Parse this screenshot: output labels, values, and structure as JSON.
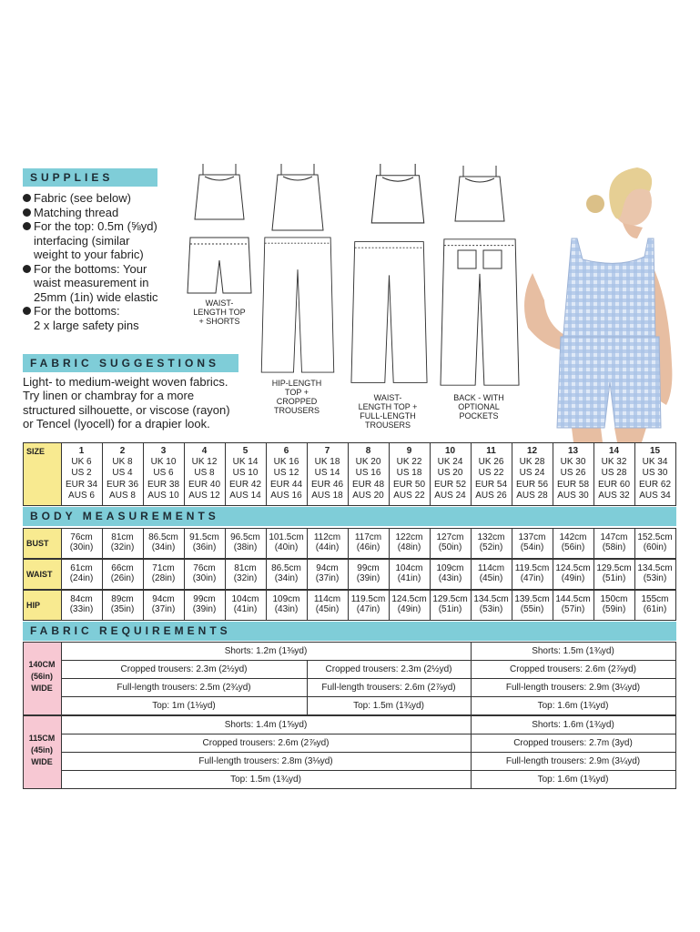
{
  "supplies": {
    "title": "SUPPLIES",
    "items": [
      [
        "Fabric (see below)"
      ],
      [
        "Matching thread"
      ],
      [
        "For the top: 0.5m (⅝yd)",
        "interfacing (similar",
        "weight to your fabric)"
      ],
      [
        "For the bottoms: Your",
        "waist measurement in",
        "25mm (1in) wide elastic"
      ],
      [
        "For the bottoms:",
        "2 x large safety pins"
      ]
    ]
  },
  "illustrations": [
    {
      "label": [
        "WAIST-",
        "LENGTH TOP",
        "+ SHORTS"
      ]
    },
    {
      "label": [
        "HIP-LENGTH",
        "TOP +",
        "CROPPED",
        "TROUSERS"
      ]
    },
    {
      "label": [
        "WAIST-",
        "LENGTH TOP +",
        "FULL-LENGTH",
        "TROUSERS"
      ]
    },
    {
      "label": [
        "BACK - WITH",
        "OPTIONAL",
        "POCKETS"
      ]
    }
  ],
  "fabric_suggestions": {
    "title": "FABRIC SUGGESTIONS",
    "lines": [
      "Light- to medium-weight woven fabrics.",
      "Try linen or chambray for a more",
      "structured silhouette, or viscose (rayon)",
      "or Tencel (lyocell) for a drapier look."
    ]
  },
  "size_table": {
    "header": "SIZE",
    "sizes": [
      {
        "number": "1",
        "lines": [
          "UK 6",
          "US 2",
          "EUR 34",
          "AUS 6"
        ]
      },
      {
        "number": "2",
        "lines": [
          "UK 8",
          "US 4",
          "EUR 36",
          "AUS 8"
        ]
      },
      {
        "number": "3",
        "lines": [
          "UK 10",
          "US 6",
          "EUR 38",
          "AUS 10"
        ]
      },
      {
        "number": "4",
        "lines": [
          "UK 12",
          "US 8",
          "EUR 40",
          "AUS 12"
        ]
      },
      {
        "number": "5",
        "lines": [
          "UK 14",
          "US 10",
          "EUR 42",
          "AUS 14"
        ]
      },
      {
        "number": "6",
        "lines": [
          "UK 16",
          "US 12",
          "EUR 44",
          "AUS 16"
        ]
      },
      {
        "number": "7",
        "lines": [
          "UK 18",
          "US 14",
          "EUR 46",
          "AUS 18"
        ]
      },
      {
        "number": "8",
        "lines": [
          "UK 20",
          "US 16",
          "EUR 48",
          "AUS 20"
        ]
      },
      {
        "number": "9",
        "lines": [
          "UK 22",
          "US 18",
          "EUR 50",
          "AUS 22"
        ]
      },
      {
        "number": "10",
        "lines": [
          "UK 24",
          "US 20",
          "EUR 52",
          "AUS 24"
        ]
      },
      {
        "number": "11",
        "lines": [
          "UK 26",
          "US 22",
          "EUR 54",
          "AUS 26"
        ]
      },
      {
        "number": "12",
        "lines": [
          "UK 28",
          "US 24",
          "EUR 56",
          "AUS 28"
        ]
      },
      {
        "number": "13",
        "lines": [
          "UK 30",
          "US 26",
          "EUR 58",
          "AUS 30"
        ]
      },
      {
        "number": "14",
        "lines": [
          "UK 32",
          "US 28",
          "EUR 60",
          "AUS 32"
        ]
      },
      {
        "number": "15",
        "lines": [
          "UK 34",
          "US 30",
          "EUR 62",
          "AUS 34"
        ]
      }
    ]
  },
  "body_measurements": {
    "title": "BODY MEASUREMENTS",
    "rows": [
      {
        "label": "BUST",
        "cells": [
          [
            "76cm",
            "(30in)"
          ],
          [
            "81cm",
            "(32in)"
          ],
          [
            "86.5cm",
            "(34in)"
          ],
          [
            "91.5cm",
            "(36in)"
          ],
          [
            "96.5cm",
            "(38in)"
          ],
          [
            "101.5cm",
            "(40in)"
          ],
          [
            "112cm",
            "(44in)"
          ],
          [
            "117cm",
            "(46in)"
          ],
          [
            "122cm",
            "(48in)"
          ],
          [
            "127cm",
            "(50in)"
          ],
          [
            "132cm",
            "(52in)"
          ],
          [
            "137cm",
            "(54in)"
          ],
          [
            "142cm",
            "(56in)"
          ],
          [
            "147cm",
            "(58in)"
          ],
          [
            "152.5cm",
            "(60in)"
          ]
        ]
      },
      {
        "label": "WAIST",
        "cells": [
          [
            "61cm",
            "(24in)"
          ],
          [
            "66cm",
            "(26in)"
          ],
          [
            "71cm",
            "(28in)"
          ],
          [
            "76cm",
            "(30in)"
          ],
          [
            "81cm",
            "(32in)"
          ],
          [
            "86.5cm",
            "(34in)"
          ],
          [
            "94cm",
            "(37in)"
          ],
          [
            "99cm",
            "(39in)"
          ],
          [
            "104cm",
            "(41in)"
          ],
          [
            "109cm",
            "(43in)"
          ],
          [
            "114cm",
            "(45in)"
          ],
          [
            "119.5cm",
            "(47in)"
          ],
          [
            "124.5cm",
            "(49in)"
          ],
          [
            "129.5cm",
            "(51in)"
          ],
          [
            "134.5cm",
            "(53in)"
          ]
        ]
      },
      {
        "label": "HIP",
        "cells": [
          [
            "84cm",
            "(33in)"
          ],
          [
            "89cm",
            "(35in)"
          ],
          [
            "94cm",
            "(37in)"
          ],
          [
            "99cm",
            "(39in)"
          ],
          [
            "104cm",
            "(41in)"
          ],
          [
            "109cm",
            "(43in)"
          ],
          [
            "114cm",
            "(45in)"
          ],
          [
            "119.5cm",
            "(47in)"
          ],
          [
            "124.5cm",
            "(49in)"
          ],
          [
            "129.5cm",
            "(51in)"
          ],
          [
            "134.5cm",
            "(53in)"
          ],
          [
            "139.5cm",
            "(55in)"
          ],
          [
            "144.5cm",
            "(57in)"
          ],
          [
            "150cm",
            "(59in)"
          ],
          [
            "155cm",
            "(61in)"
          ]
        ]
      }
    ]
  },
  "fabric_requirements": {
    "title": "FABRIC REQUIREMENTS",
    "widths": [
      {
        "label": [
          "140CM",
          "(56in)",
          "WIDE"
        ],
        "rows": [
          [
            "Shorts: 1.2m (1⅜yd)",
            "Shorts: 1.5m (1¾yd)"
          ],
          [
            "Cropped trousers: 2.3m (2½yd)",
            "Cropped trousers: 2.3m (2½yd)",
            "Cropped trousers: 2.6m (2⅞yd)"
          ],
          [
            "Full-length trousers: 2.5m (2¾yd)",
            "Full-length trousers: 2.6m (2⅞yd)",
            "Full-length trousers: 2.9m (3¼yd)"
          ],
          [
            "Top: 1m (1⅛yd)",
            "Top: 1.5m (1¾yd)",
            "Top: 1.6m (1¾yd)"
          ]
        ]
      },
      {
        "label": [
          "115CM",
          "(45in)",
          "WIDE"
        ],
        "rows": [
          [
            "Shorts: 1.4m (1⅝yd)",
            "Shorts: 1.6m (1¾yd)"
          ],
          [
            "Cropped trousers: 2.6m (2⅞yd)",
            "Cropped trousers: 2.7m (3yd)"
          ],
          [
            "Full-length trousers: 2.8m (3⅛yd)",
            "Full-length trousers: 2.9m (3¼yd)"
          ],
          [
            "Top: 1.5m (1¾yd)",
            "Top: 1.6m (1¾yd)"
          ]
        ]
      }
    ]
  }
}
